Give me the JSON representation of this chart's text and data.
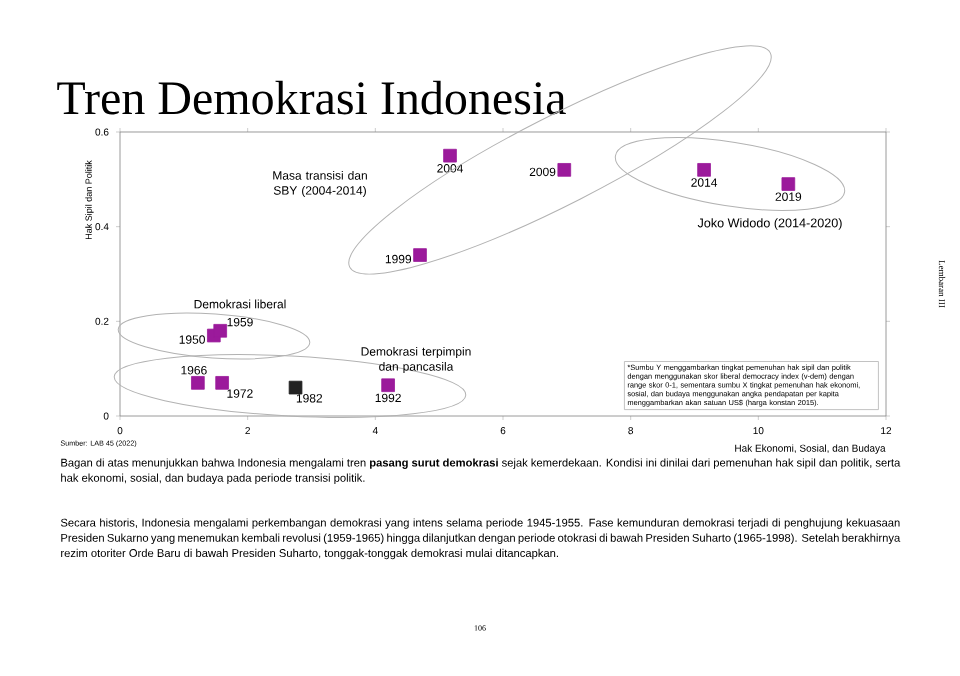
{
  "chart_data": {
    "type": "scatter",
    "title": "Tren Demokrasi Indonesia",
    "xlabel": "Hak Ekonomi, Sosial, dan Budaya",
    "ylabel": "Hak Sipil dan Politik",
    "x": [
      5.17,
      4.7,
      6.96,
      9.15,
      10.47,
      1.47,
      1.57,
      1.22,
      1.6,
      2.75,
      4.2
    ],
    "values": [
      0.55,
      0.34,
      0.52,
      0.52,
      0.49,
      0.17,
      0.18,
      0.07,
      0.07,
      0.06,
      0.065
    ],
    "colors": [
      "#9b1a9b",
      "#9b1a9b",
      "#9b1a9b",
      "#9b1a9b",
      "#9b1a9b",
      "#9b1a9b",
      "#9b1a9b",
      "#9b1a9b",
      "#9b1a9b",
      "#222222",
      "#9b1a9b"
    ],
    "marker": "square",
    "xlim": [
      0,
      12
    ],
    "ylim": [
      0,
      0.6
    ],
    "xticks": [
      0,
      2,
      4,
      6,
      8,
      10,
      12
    ],
    "yticks": [
      0,
      0.2,
      0.4,
      0.6
    ],
    "annotations": [
      {
        "text": "2004",
        "x": 5.17,
        "y": 0.55
      },
      {
        "text": "1999",
        "x": 4.7,
        "y": 0.34
      },
      {
        "text": "2009",
        "x": 6.96,
        "y": 0.52
      },
      {
        "text": "2014",
        "x": 9.15,
        "y": 0.52
      },
      {
        "text": "2019",
        "x": 10.47,
        "y": 0.49
      },
      {
        "text": "1950",
        "x": 1.47,
        "y": 0.17
      },
      {
        "text": "1959",
        "x": 1.57,
        "y": 0.18
      },
      {
        "text": "1966",
        "x": 1.22,
        "y": 0.07
      },
      {
        "text": "1972",
        "x": 1.6,
        "y": 0.07
      },
      {
        "text": "1982",
        "x": 2.75,
        "y": 0.06
      },
      {
        "text": "1992",
        "x": 4.2,
        "y": 0.065
      },
      "Masa transisi dan SBY (2004-2014)",
      "Demokrasi liberal",
      "Demokrasi terpimpin dan pancasila",
      "Joko Widodo (2014-2020)",
      "*Sumbu Y menggambarkan tingkat pemenuhan hak sipil dan politik dengan menggunakan skor liberal democracy index (v-dem) dengan range skor 0-1, sementara sumbu X tingkat pemenuhan hak ekonomi, sosial, dan budaya menggunakan angka pendapatan per kapita menggambarkan akan satuan US$ (harga konstan 2015).",
      "Sumber: LAB 45 (2022)",
      "Bagan di atas menunjukkan bahwa Indonesia mengalami tren **pasang surut demokrasi** sejak kemerdekaan. Kondisi ini dinilai dari pemenuhan hak sipil dan politik, serta hak ekonomi, sosial, dan budaya pada periode transisi politik.",
      "Secara historis, Indonesia mengalami perkembangan demokrasi yang intens selama periode 1945-1955. Fase kemunduran demokrasi terjadi di penghujung kekuasaan Presiden Sukarno yang menemukan kembali revolusi (1959-1965) hingga dilanjutkan dengan periode otokrasi di bawah Presiden Suharto (1965-1998). Setelah berakhirnya rezim otoriter Orde Baru di bawah Presiden Suharto, tonggak-tonggak demokrasi mulai ditancapkan.",
      "106",
      "Lembaran III"
    ]
  }
}
